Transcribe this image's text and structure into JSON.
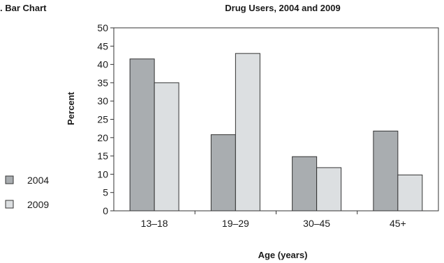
{
  "panel_label": ". Bar Chart",
  "chart_data": {
    "type": "bar",
    "title": "Drug Users, 2004 and 2009",
    "xlabel": "Age (years)",
    "ylabel": "Percent",
    "categories": [
      "13–18",
      "19–29",
      "30–45",
      "45+"
    ],
    "series": [
      {
        "name": "2004",
        "values": [
          41.5,
          20.8,
          14.8,
          21.8
        ],
        "color": "#a9adb0"
      },
      {
        "name": "2009",
        "values": [
          35,
          43,
          11.8,
          9.8
        ],
        "color": "#dcdfe1"
      }
    ],
    "ylim": [
      0,
      50
    ],
    "yticks": [
      0,
      5,
      10,
      15,
      20,
      25,
      30,
      35,
      40,
      45,
      50
    ],
    "grid": false,
    "legend_position": "left"
  }
}
